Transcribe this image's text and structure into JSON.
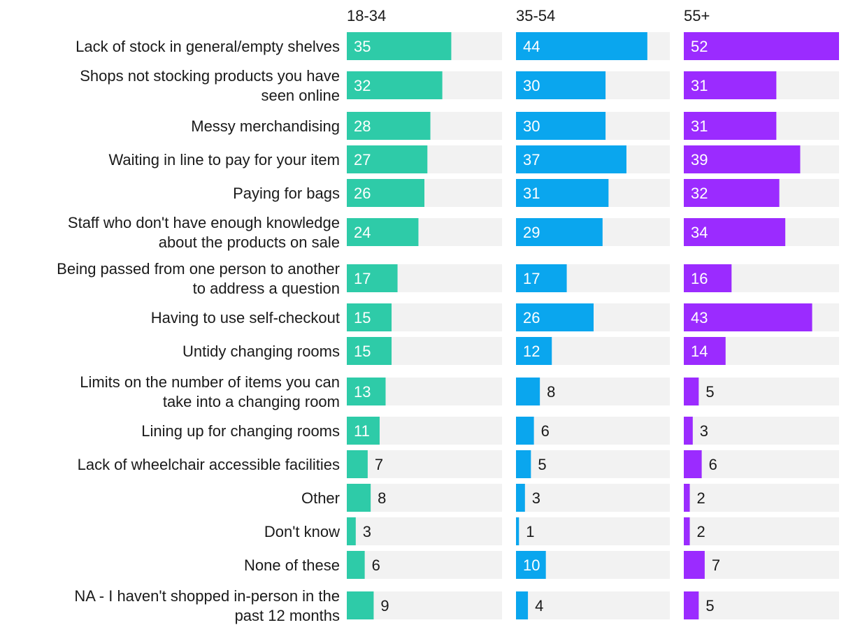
{
  "chart_data": {
    "type": "bar",
    "orientation": "horizontal",
    "layout": "small-multiples",
    "title": "",
    "xlabel": "",
    "ylabel": "",
    "xlim": [
      0,
      52
    ],
    "grid": false,
    "categories": [
      [
        "Lack of stock in general/empty shelves"
      ],
      [
        "Shops not stocking products you have",
        "seen online"
      ],
      [
        "Messy merchandising"
      ],
      [
        "Waiting in line to pay for your item"
      ],
      [
        "Paying for bags"
      ],
      [
        "Staff who don't have enough knowledge",
        "about the products on sale"
      ],
      [
        "Being passed from one person to another",
        "to address a question"
      ],
      [
        "Having to use self-checkout"
      ],
      [
        "Untidy changing rooms"
      ],
      [
        "Limits on the number of items you can",
        "take into a changing room"
      ],
      [
        "Lining up for changing rooms"
      ],
      [
        "Lack of wheelchair accessible facilities"
      ],
      [
        "Other"
      ],
      [
        "Don't know"
      ],
      [
        "None of these"
      ],
      [
        "NA - I haven't shopped in-person in the",
        "past 12 months"
      ]
    ],
    "series": [
      {
        "name": "18-34",
        "color": "#2ecba8",
        "values": [
          35,
          32,
          28,
          27,
          26,
          24,
          17,
          15,
          15,
          13,
          11,
          7,
          8,
          3,
          6,
          9
        ]
      },
      {
        "name": "35-54",
        "color": "#0aa6ee",
        "values": [
          44,
          30,
          30,
          37,
          31,
          29,
          17,
          26,
          12,
          8,
          6,
          5,
          3,
          1,
          10,
          4
        ]
      },
      {
        "name": "55+",
        "color": "#9b2bff",
        "values": [
          52,
          31,
          31,
          39,
          32,
          34,
          16,
          43,
          14,
          5,
          3,
          6,
          2,
          2,
          7,
          5
        ]
      }
    ],
    "track_color": "#f2f2f2",
    "label_inside_color": "#ffffff",
    "label_outside_color": "#1a1a1a"
  }
}
